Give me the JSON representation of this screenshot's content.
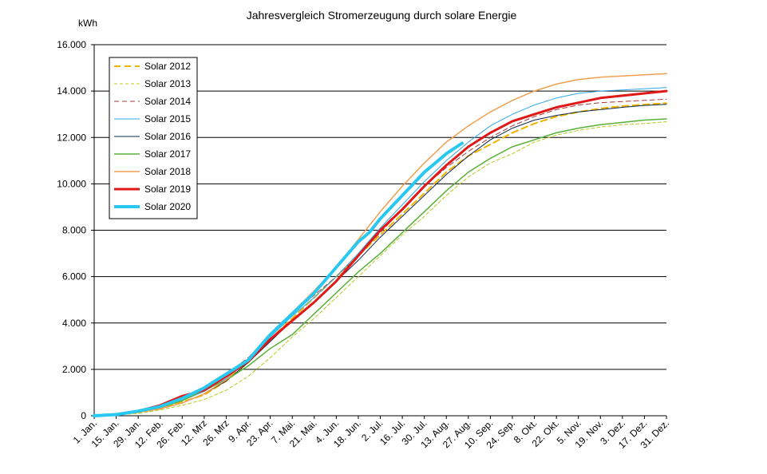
{
  "chart_data": {
    "type": "line",
    "title": "Jahresvergleich  Stromerzeugung  durch  solare  Energie",
    "ylabel": "kWh",
    "xlabel": "",
    "ylim": [
      0,
      16000
    ],
    "xlim": [
      0,
      364
    ],
    "grid": "horizontal",
    "legend_position": "top-left",
    "yticks": [
      0,
      2000,
      4000,
      6000,
      8000,
      10000,
      12000,
      14000,
      16000
    ],
    "ytick_labels": [
      "0",
      "2.000",
      "4.000",
      "6.000",
      "8.000",
      "10.000",
      "12.000",
      "14.000",
      "16.000"
    ],
    "xtick_days": [
      0,
      14,
      28,
      42,
      56,
      70,
      84,
      98,
      112,
      126,
      140,
      154,
      168,
      182,
      196,
      210,
      224,
      238,
      252,
      266,
      280,
      294,
      308,
      322,
      336,
      350,
      364
    ],
    "xtick_labels": [
      "1. Jan.",
      "15. Jan.",
      "29. Jan.",
      "12. Feb.",
      "26. Feb.",
      "12. Mrz",
      "26. Mrz",
      "9. Apr.",
      "23. Apr.",
      "7. Mai.",
      "21. Mai.",
      "4. Jun.",
      "18. Jun.",
      "2. Jul.",
      "16. Jul.",
      "30. Jul.",
      "13. Aug.",
      "27. Aug.",
      "10. Sep.",
      "24. Sep.",
      "8. Okt.",
      "22. Okt.",
      "5. Nov.",
      "19. Nov.",
      "3. Dez.",
      "17. Dez.",
      "31. Dez."
    ],
    "series": [
      {
        "name": "Solar 2012",
        "color": "#f0b400",
        "width": 2,
        "dash": "8,5",
        "x": [
          0,
          14,
          28,
          42,
          56,
          70,
          84,
          98,
          112,
          126,
          140,
          154,
          168,
          182,
          196,
          210,
          224,
          238,
          252,
          266,
          280,
          294,
          308,
          322,
          336,
          350,
          364
        ],
        "y": [
          0,
          50,
          150,
          300,
          600,
          900,
          1500,
          2300,
          3300,
          4200,
          5100,
          6000,
          6900,
          7800,
          8700,
          9600,
          10500,
          11200,
          11700,
          12200,
          12600,
          12900,
          13100,
          13250,
          13350,
          13420,
          13480
        ]
      },
      {
        "name": "Solar 2013",
        "color": "#b8c820",
        "width": 1,
        "dash": "4,3",
        "x": [
          0,
          14,
          28,
          42,
          56,
          70,
          84,
          98,
          112,
          126,
          140,
          154,
          168,
          182,
          196,
          210,
          224,
          238,
          252,
          266,
          280,
          294,
          308,
          322,
          336,
          350,
          364
        ],
        "y": [
          0,
          30,
          100,
          250,
          450,
          700,
          1100,
          1700,
          2500,
          3400,
          4200,
          5100,
          6000,
          6900,
          7800,
          8600,
          9500,
          10300,
          10900,
          11300,
          11800,
          12100,
          12300,
          12450,
          12550,
          12600,
          12680
        ]
      },
      {
        "name": "Solar 2014",
        "color": "#a83838",
        "width": 1,
        "dash": "6,4",
        "x": [
          0,
          14,
          28,
          42,
          56,
          70,
          84,
          98,
          112,
          126,
          140,
          154,
          168,
          182,
          196,
          210,
          224,
          238,
          252,
          266,
          280,
          294,
          308,
          322,
          336,
          350,
          364
        ],
        "y": [
          0,
          50,
          200,
          400,
          700,
          1200,
          1800,
          2500,
          3500,
          4400,
          5200,
          6000,
          6900,
          7900,
          8900,
          9900,
          10700,
          11400,
          12000,
          12500,
          12900,
          13200,
          13400,
          13500,
          13550,
          13600,
          13650
        ]
      },
      {
        "name": "Solar 2015",
        "color": "#30a8e8",
        "width": 1,
        "dash": "",
        "x": [
          0,
          14,
          28,
          42,
          56,
          70,
          84,
          98,
          112,
          126,
          140,
          154,
          168,
          182,
          196,
          210,
          224,
          238,
          252,
          266,
          280,
          294,
          308,
          322,
          336,
          350,
          364
        ],
        "y": [
          0,
          40,
          150,
          350,
          650,
          1050,
          1600,
          2350,
          3400,
          4300,
          5100,
          6000,
          7000,
          8100,
          9100,
          10100,
          11000,
          11800,
          12500,
          13000,
          13400,
          13700,
          13900,
          14000,
          14050,
          14100,
          14150
        ]
      },
      {
        "name": "Solar 2016",
        "color": "#102848",
        "width": 1,
        "dash": "",
        "x": [
          0,
          14,
          28,
          42,
          56,
          70,
          84,
          98,
          112,
          126,
          140,
          154,
          168,
          182,
          196,
          210,
          224,
          238,
          252,
          266,
          280,
          294,
          308,
          322,
          336,
          350,
          364
        ],
        "y": [
          0,
          40,
          150,
          300,
          550,
          950,
          1500,
          2300,
          3200,
          4100,
          4900,
          5800,
          6700,
          7700,
          8600,
          9500,
          10400,
          11200,
          11900,
          12400,
          12750,
          12950,
          13100,
          13200,
          13300,
          13380,
          13430
        ]
      },
      {
        "name": "Solar 2017",
        "color": "#58b038",
        "width": 1.5,
        "dash": "",
        "x": [
          0,
          14,
          28,
          42,
          56,
          70,
          84,
          98,
          112,
          126,
          140,
          154,
          168,
          182,
          196,
          210,
          224,
          238,
          252,
          266,
          280,
          294,
          308,
          322,
          336,
          350,
          364
        ],
        "y": [
          0,
          40,
          150,
          350,
          650,
          1100,
          1550,
          2150,
          2900,
          3500,
          4400,
          5300,
          6200,
          7000,
          7900,
          8800,
          9700,
          10500,
          11100,
          11600,
          11900,
          12200,
          12400,
          12550,
          12650,
          12750,
          12800
        ]
      },
      {
        "name": "Solar 2018",
        "color": "#f0a050",
        "width": 1.5,
        "dash": "",
        "x": [
          0,
          14,
          28,
          42,
          56,
          70,
          84,
          98,
          112,
          126,
          140,
          154,
          168,
          182,
          196,
          210,
          224,
          238,
          252,
          266,
          280,
          294,
          308,
          322,
          336,
          350,
          364
        ],
        "y": [
          0,
          40,
          150,
          300,
          550,
          950,
          1550,
          2450,
          3500,
          4450,
          5400,
          6400,
          7600,
          8800,
          9900,
          10900,
          11800,
          12500,
          13100,
          13600,
          14000,
          14300,
          14500,
          14600,
          14650,
          14700,
          14750
        ]
      },
      {
        "name": "Solar 2019",
        "color": "#e01818",
        "width": 3,
        "dash": "",
        "x": [
          0,
          14,
          28,
          42,
          56,
          70,
          84,
          98,
          112,
          126,
          140,
          154,
          168,
          182,
          196,
          210,
          224,
          238,
          252,
          266,
          280,
          294,
          308,
          322,
          336,
          350,
          364
        ],
        "y": [
          0,
          60,
          200,
          450,
          850,
          1100,
          1700,
          2350,
          3300,
          4100,
          4900,
          5800,
          6900,
          8000,
          8900,
          9900,
          10800,
          11600,
          12200,
          12700,
          13000,
          13300,
          13500,
          13700,
          13800,
          13900,
          14000
        ]
      },
      {
        "name": "Solar 2020",
        "color": "#28c8f0",
        "width": 4,
        "dash": "",
        "x": [
          0,
          14,
          28,
          42,
          56,
          70,
          84,
          98,
          112,
          126,
          140,
          154,
          168,
          175,
          182,
          196,
          210,
          224,
          234
        ],
        "y": [
          0,
          50,
          200,
          400,
          750,
          1200,
          1800,
          2400,
          3500,
          4400,
          5300,
          6400,
          7500,
          7900,
          8500,
          9500,
          10500,
          11300,
          11750
        ]
      }
    ]
  }
}
